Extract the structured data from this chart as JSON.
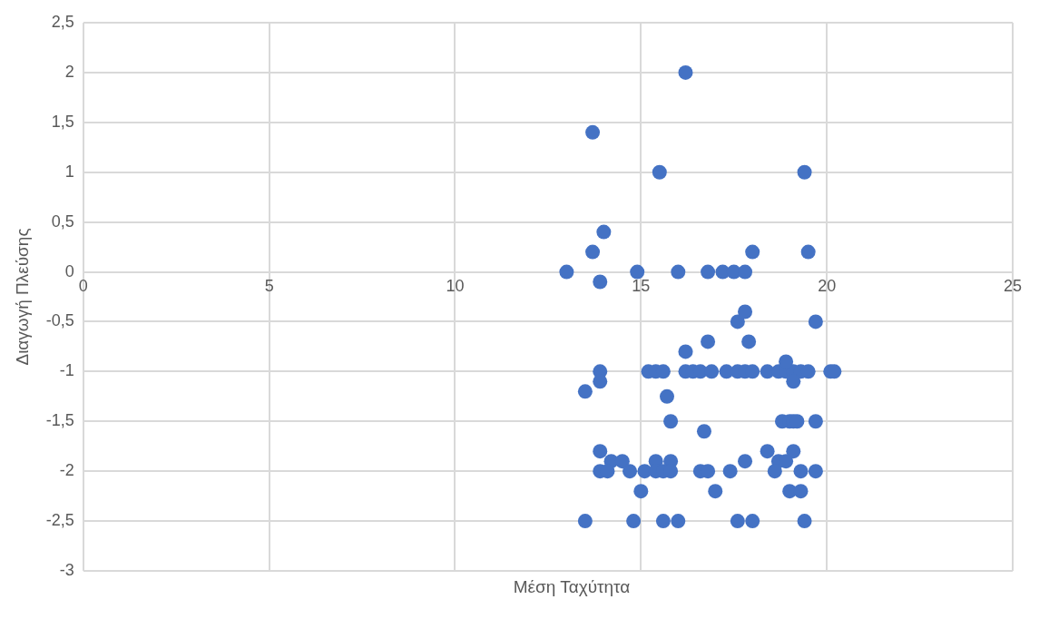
{
  "chart_data": {
    "type": "scatter",
    "xlabel": "Μέση Ταχύτητα",
    "ylabel": "Διαγωγή Πλεύσης",
    "xlim": [
      0,
      25
    ],
    "xticks": [
      0,
      5,
      10,
      15,
      20,
      25
    ],
    "ylim": [
      -3,
      2.5
    ],
    "yticks": [
      -3,
      {
        "value": -2.5,
        "label": "-2,5"
      },
      -2,
      {
        "value": -1.5,
        "label": "-1,5"
      },
      -1,
      {
        "value": -0.5,
        "label": "-0,5"
      },
      0,
      {
        "value": 0.5,
        "label": "0,5"
      },
      1,
      {
        "value": 1.5,
        "label": "1,5"
      },
      2,
      {
        "value": 2.5,
        "label": "2,5"
      }
    ],
    "grid": true,
    "marker": "circle",
    "series": [
      {
        "color": "#4472c4",
        "x": [
          13.7,
          16.2,
          15.5,
          19.4,
          13.7,
          14,
          13,
          13.9,
          14.9,
          16,
          16.8,
          17.2,
          17.5,
          17.8,
          18,
          19.5,
          17.6,
          17.8,
          19.7,
          16.2,
          16.8,
          17.9,
          13.9,
          15.2,
          15.4,
          15.6,
          16.2,
          16.4,
          16.6,
          16.9,
          17.3,
          17.6,
          17.8,
          18,
          18.4,
          18.7,
          18.9,
          19.1,
          19.3,
          19.5,
          20.1,
          20.2,
          18.9,
          19.1,
          13.9,
          13.5,
          15.7,
          15.8,
          16.7,
          18.8,
          19,
          19.1,
          19.2,
          19.7,
          13.9,
          18.4,
          19.1,
          14.2,
          14.5,
          15.4,
          15.8,
          17.8,
          18.7,
          18.9,
          13.9,
          14.1,
          14.7,
          15.1,
          15.4,
          15.6,
          15.8,
          16.6,
          16.8,
          17.4,
          18.6,
          19.3,
          19.7,
          15,
          17,
          19,
          19.3,
          13.5,
          14.8,
          15.6,
          16,
          17.6,
          18,
          19.4
        ],
        "values": [
          1.4,
          2,
          1,
          1,
          0.2,
          0.4,
          0,
          -0.1,
          0,
          0,
          0,
          0,
          0,
          0,
          0.2,
          0.2,
          -0.5,
          -0.4,
          -0.5,
          -0.8,
          -0.7,
          -0.7,
          -1,
          -1,
          -1,
          -1,
          -1,
          -1,
          -1,
          -1,
          -1,
          -1,
          -1,
          -1,
          -1,
          -1,
          -1,
          -1,
          -1,
          -1,
          -1,
          -1,
          -0.9,
          -1.1,
          -1.1,
          -1.2,
          -1.25,
          -1.5,
          -1.6,
          -1.5,
          -1.5,
          -1.5,
          -1.5,
          -1.5,
          -1.8,
          -1.8,
          -1.8,
          -1.9,
          -1.9,
          -1.9,
          -1.9,
          -1.9,
          -1.9,
          -1.9,
          -2,
          -2,
          -2,
          -2,
          -2,
          -2,
          -2,
          -2,
          -2,
          -2,
          -2,
          -2,
          -2,
          -2.2,
          -2.2,
          -2.2,
          -2.2,
          -2.5,
          -2.5,
          -2.5,
          -2.5,
          -2.5,
          -2.5,
          -2.5
        ]
      }
    ]
  }
}
